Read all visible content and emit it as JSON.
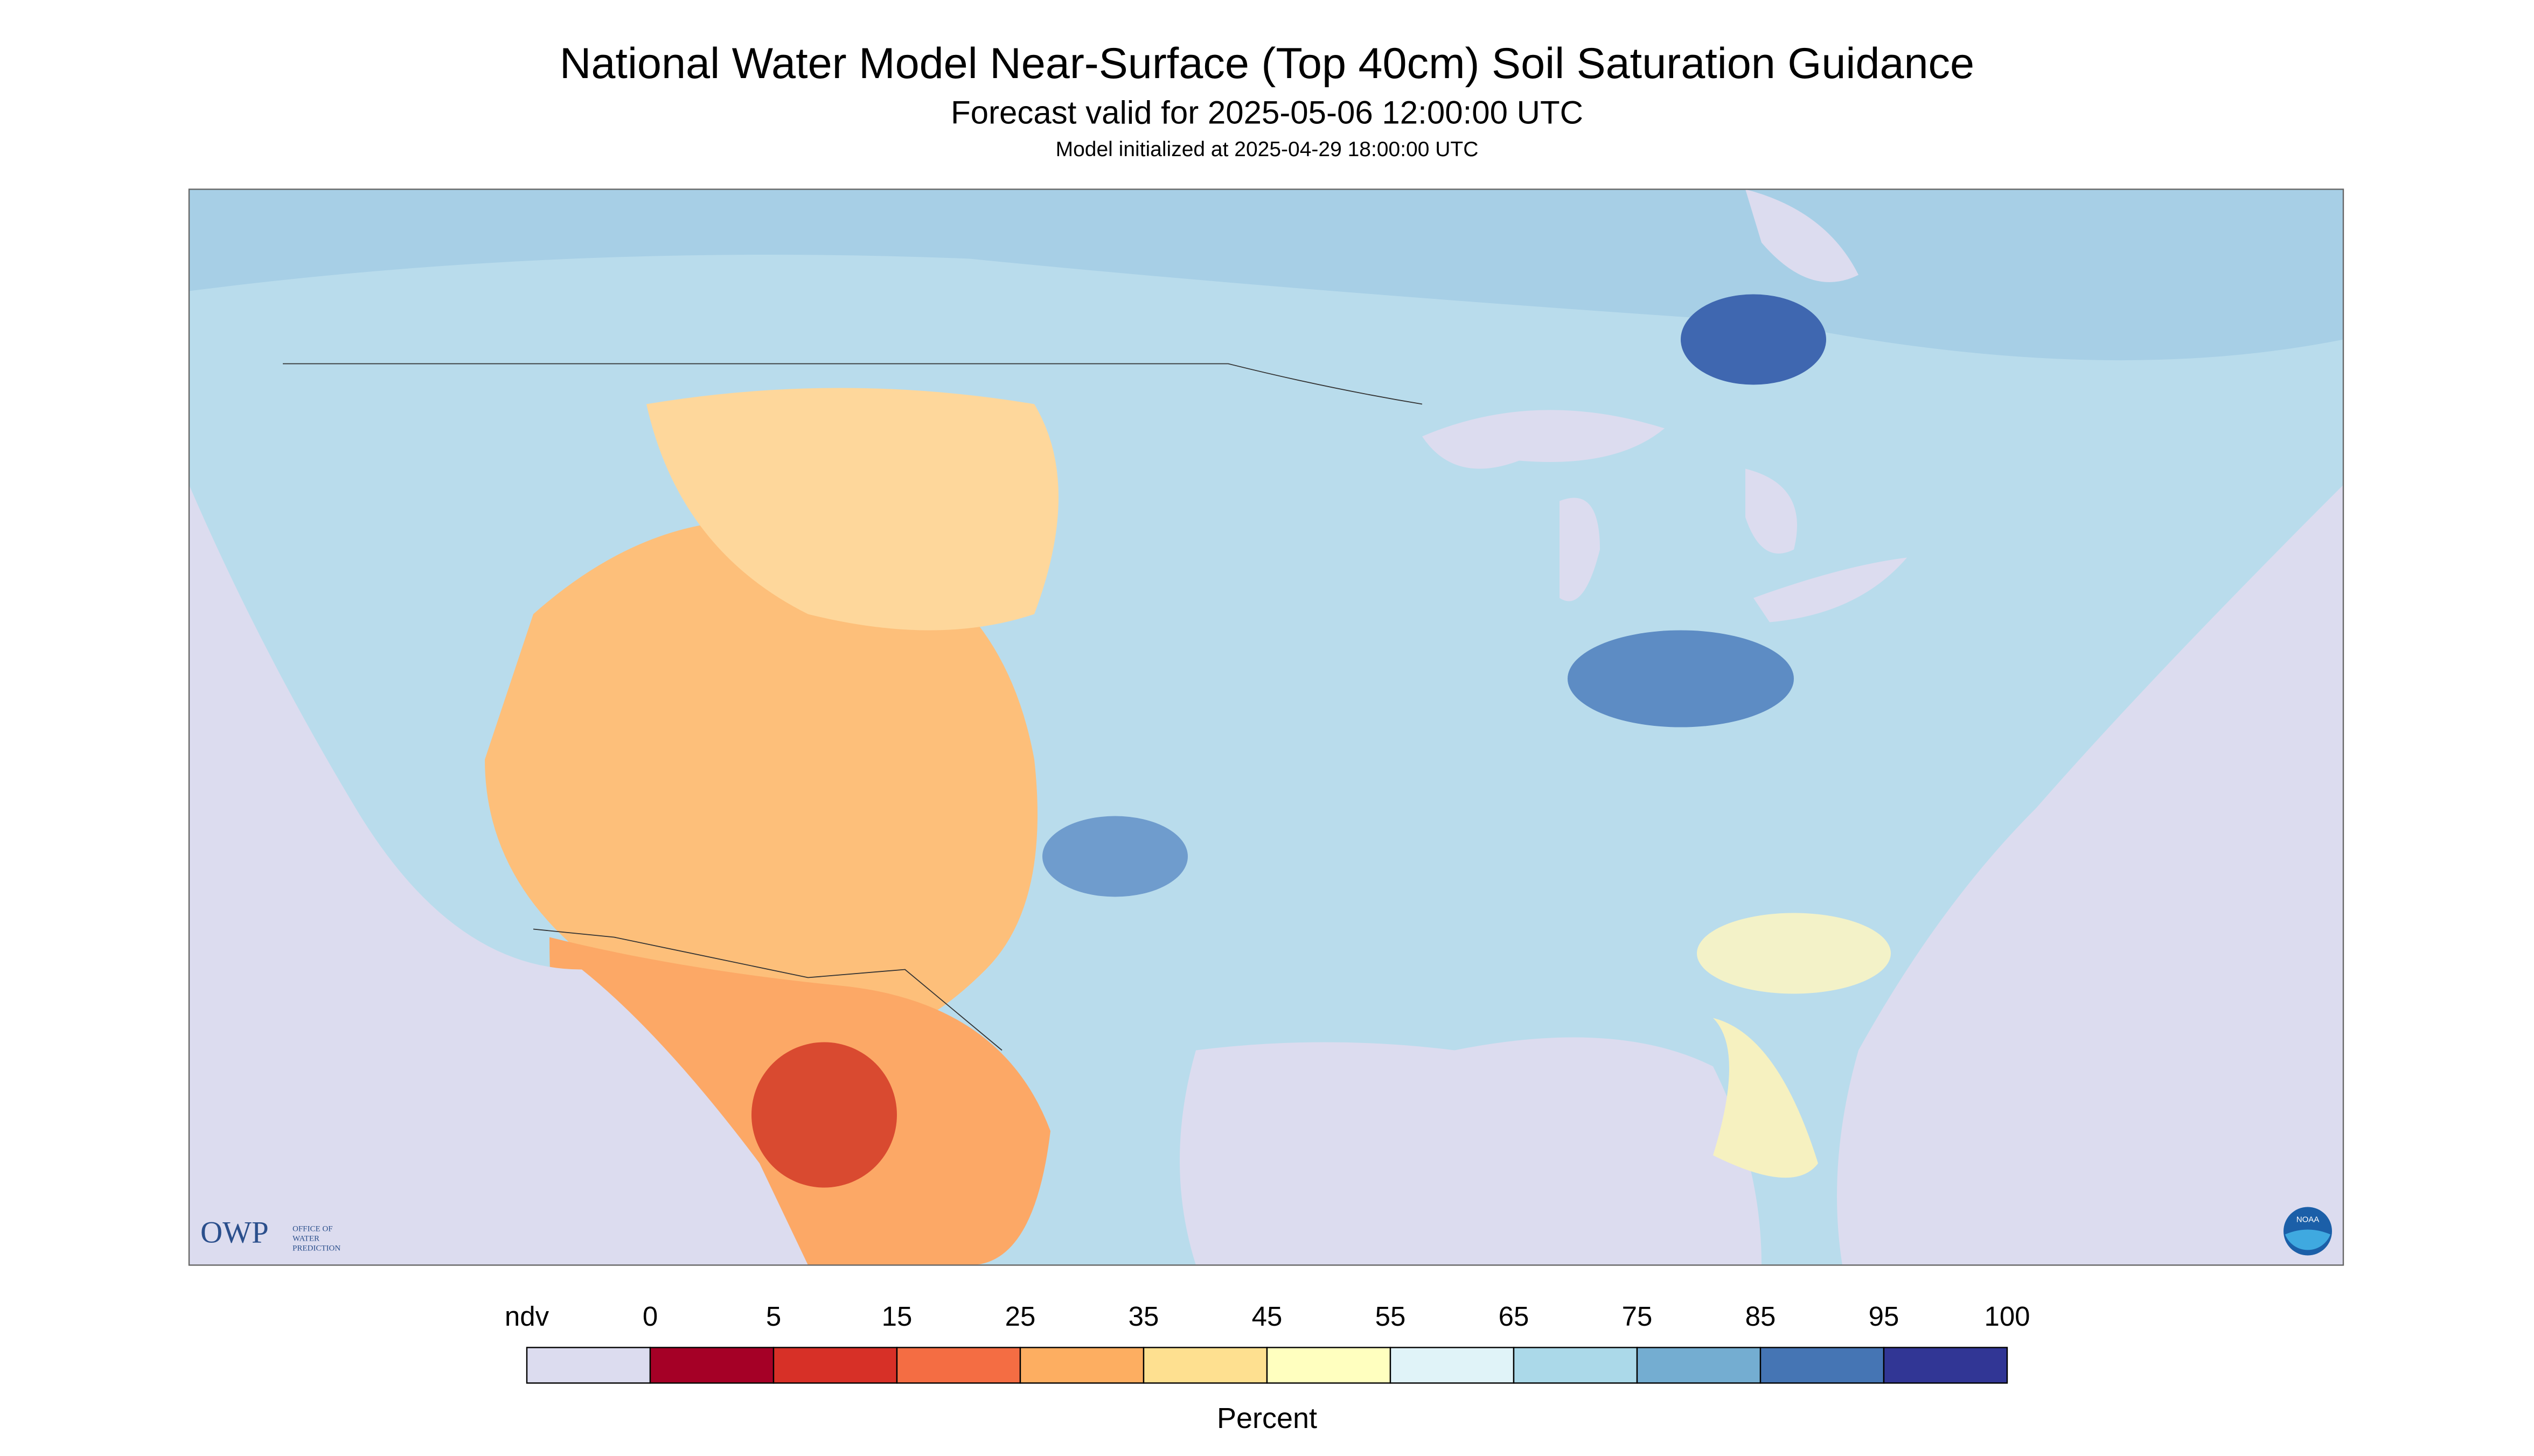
{
  "header": {
    "title": "National Water Model Near-Surface (Top 40cm) Soil Saturation Guidance",
    "subtitle": "Forecast valid for 2025-05-06 12:00:00 UTC",
    "note": "Model initialized at 2025-04-29 18:00:00 UTC"
  },
  "logos": {
    "owp": "OWP",
    "owp_line1": "OFFICE OF",
    "owp_line2": "WATER",
    "owp_line3": "PREDICTION",
    "noaa": "NOAA"
  },
  "legend": {
    "labels": [
      "ndv",
      "0",
      "5",
      "15",
      "25",
      "35",
      "45",
      "55",
      "65",
      "75",
      "85",
      "95",
      "100"
    ],
    "colors": [
      "#dcdcef",
      "#a50026",
      "#d73027",
      "#f46d43",
      "#fdae61",
      "#fee090",
      "#ffffbf",
      "#e0f3f8",
      "#abd9e9",
      "#74add1",
      "#4575b4",
      "#313695"
    ],
    "unit": "Percent"
  }
}
